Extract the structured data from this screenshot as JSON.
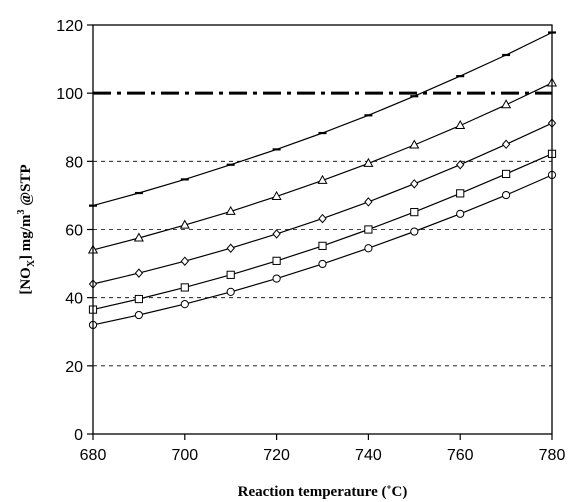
{
  "chart_data": {
    "type": "line",
    "title": "",
    "xlabel": "Reaction temperature (˚C)",
    "ylabel_parts": {
      "bracket_open": "[NO",
      "subscript": "X",
      "bracket_close": "] mg/m",
      "superscript": "3",
      "suffix": " @STP"
    },
    "xlim": [
      680,
      780
    ],
    "ylim": [
      0,
      120
    ],
    "x_ticks": [
      680,
      700,
      720,
      740,
      760,
      780
    ],
    "y_ticks": [
      0,
      20,
      40,
      60,
      80,
      100,
      120
    ],
    "dashed_gridlines_y": [
      20,
      40,
      60,
      80
    ],
    "reference_line": {
      "y": 100,
      "style": "dash-dot"
    },
    "x": [
      680,
      690,
      700,
      710,
      720,
      730,
      740,
      750,
      760,
      770,
      780
    ],
    "series": [
      {
        "marker": "dash",
        "values": [
          67,
          70.7,
          74.7,
          79,
          83.5,
          88.3,
          93.5,
          99.1,
          105,
          111.2,
          117.8
        ]
      },
      {
        "marker": "triangle",
        "values": [
          54,
          57.5,
          61.3,
          65.3,
          69.7,
          74.4,
          79.4,
          84.8,
          90.5,
          96.6,
          103
        ]
      },
      {
        "marker": "diamond",
        "values": [
          44,
          47.2,
          50.7,
          54.5,
          58.7,
          63.2,
          68.1,
          73.4,
          79,
          85,
          91.2
        ]
      },
      {
        "marker": "square",
        "values": [
          36.5,
          39.6,
          43,
          46.7,
          50.8,
          55.2,
          60,
          65.1,
          70.6,
          76.3,
          82.2
        ]
      },
      {
        "marker": "circle",
        "values": [
          32,
          34.9,
          38.1,
          41.7,
          45.6,
          49.9,
          54.5,
          59.4,
          64.6,
          70.1,
          76
        ]
      }
    ]
  }
}
